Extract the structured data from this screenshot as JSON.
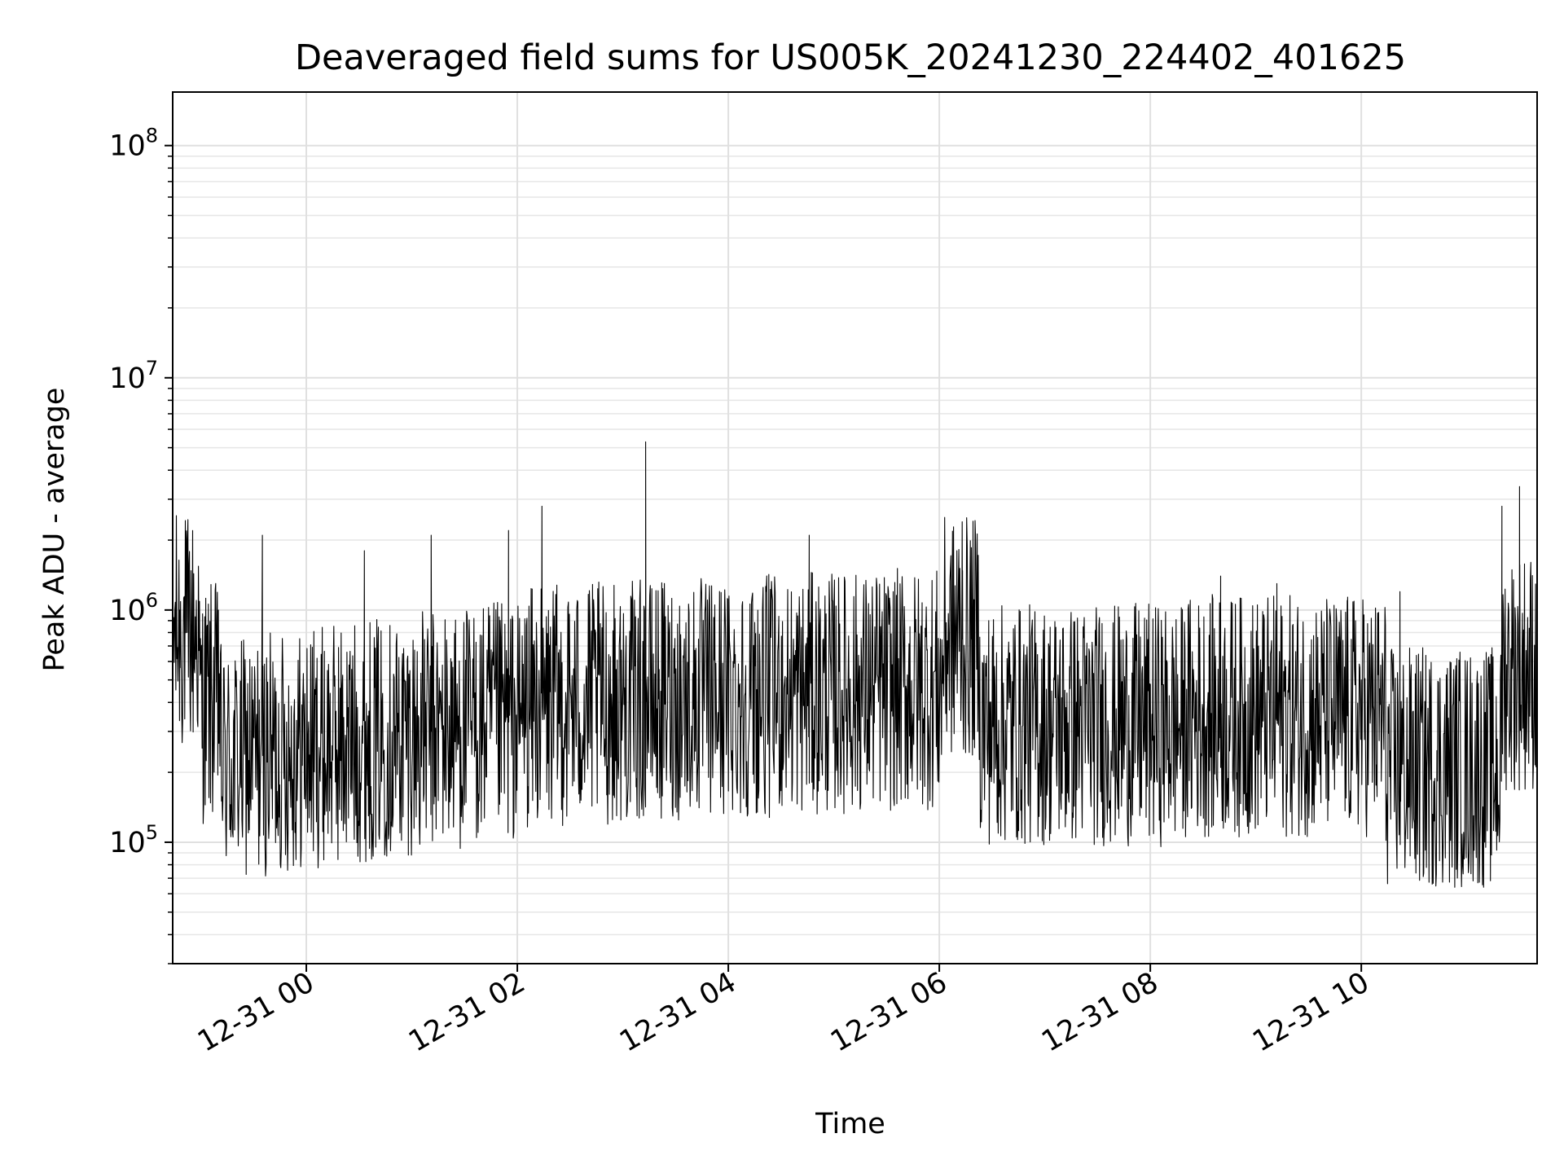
{
  "chart_data": {
    "type": "line",
    "title": "Deaveraged field sums for US005K_20241230_224402_401625",
    "xlabel": "Time",
    "ylabel": "Peak ADU - average",
    "yscale": "log",
    "ylim": [
      30000,
      170000000
    ],
    "xlim": [
      "2024-12-30 22:44",
      "2024-12-31 11:40"
    ],
    "grid": true,
    "line_color": "#000000",
    "x_ticks": [
      {
        "x": "2024-12-31 00:00",
        "label": "12-31 00"
      },
      {
        "x": "2024-12-31 02:00",
        "label": "12-31 02"
      },
      {
        "x": "2024-12-31 04:00",
        "label": "12-31 04"
      },
      {
        "x": "2024-12-31 06:00",
        "label": "12-31 06"
      },
      {
        "x": "2024-12-31 08:00",
        "label": "12-31 08"
      },
      {
        "x": "2024-12-31 10:00",
        "label": "12-31 10"
      }
    ],
    "y_ticks": [
      {
        "value": 100000,
        "base": "10",
        "exp": "5"
      },
      {
        "value": 1000000,
        "base": "10",
        "exp": "6"
      },
      {
        "value": 10000000,
        "base": "10",
        "exp": "7"
      },
      {
        "value": 100000000,
        "base": "10",
        "exp": "8"
      }
    ],
    "series": [
      {
        "x": [
          "2024-12-30 22:44",
          "2024-12-30 22:46",
          "2024-12-30 22:48",
          "2024-12-30 22:50",
          "2024-12-30 22:52",
          "2024-12-30 22:54",
          "2024-12-30 22:56",
          "2024-12-30 22:58",
          "2024-12-30 23:00",
          "2024-12-30 23:06",
          "2024-12-30 23:10",
          "2024-12-30 23:20",
          "2024-12-30 23:35",
          "2024-12-30 23:52",
          "2024-12-31 00:06",
          "2024-12-31 00:22",
          "2024-12-31 00:33",
          "2024-12-31 00:48",
          "2024-12-31 01:00",
          "2024-12-31 01:11",
          "2024-12-31 01:22",
          "2024-12-31 01:40",
          "2024-12-31 01:55",
          "2024-12-31 01:58",
          "2024-12-31 02:14",
          "2024-12-31 02:35",
          "2024-12-31 02:49",
          "2024-12-31 03:04",
          "2024-12-31 03:13",
          "2024-12-31 03:30",
          "2024-12-31 03:45",
          "2024-12-31 04:00",
          "2024-12-31 04:20",
          "2024-12-31 04:33",
          "2024-12-31 04:46",
          "2024-12-31 05:06",
          "2024-12-31 05:20",
          "2024-12-31 05:31",
          "2024-12-31 05:50",
          "2024-12-31 06:00",
          "2024-12-31 06:05",
          "2024-12-31 06:10",
          "2024-12-31 06:13",
          "2024-12-31 06:18",
          "2024-12-31 06:25",
          "2024-12-31 06:34",
          "2024-12-31 06:53",
          "2024-12-31 07:08",
          "2024-12-31 07:25",
          "2024-12-31 07:34",
          "2024-12-31 07:45",
          "2024-12-31 07:52",
          "2024-12-31 08:06",
          "2024-12-31 08:26",
          "2024-12-31 08:40",
          "2024-12-31 08:54",
          "2024-12-31 09:07",
          "2024-12-31 09:12",
          "2024-12-31 09:30",
          "2024-12-31 09:43",
          "2024-12-31 09:52",
          "2024-12-31 10:06",
          "2024-12-31 10:20",
          "2024-12-31 10:22",
          "2024-12-31 10:35",
          "2024-12-31 10:44",
          "2024-12-31 10:58",
          "2024-12-31 11:10",
          "2024-12-31 11:14",
          "2024-12-31 11:20",
          "2024-12-31 11:26",
          "2024-12-31 11:30",
          "2024-12-31 11:36",
          "2024-12-31 11:40"
        ],
        "y": [
          650000,
          900000,
          1000000,
          850000,
          1900000,
          600000,
          350000,
          220000,
          200000,
          190000,
          1000000,
          210000,
          2100000,
          180000,
          220000,
          200000,
          1800000,
          180000,
          170000,
          2100000,
          200000,
          220000,
          2200000,
          400000,
          2800000,
          350000,
          300000,
          380000,
          5300000,
          350000,
          400000,
          420000,
          450000,
          420000,
          2100000,
          500000,
          480000,
          520000,
          500000,
          450000,
          700000,
          1800000,
          2400000,
          1100000,
          700000,
          350000,
          300000,
          350000,
          300000,
          250000,
          260000,
          250000,
          450000,
          450000,
          1400000,
          350000,
          300000,
          1300000,
          300000,
          350000,
          1100000,
          300000,
          220000,
          1200000,
          250000,
          200000,
          180000,
          220000,
          250000,
          2800000,
          500000,
          3400000,
          800000,
          1000000
        ]
      }
    ]
  }
}
